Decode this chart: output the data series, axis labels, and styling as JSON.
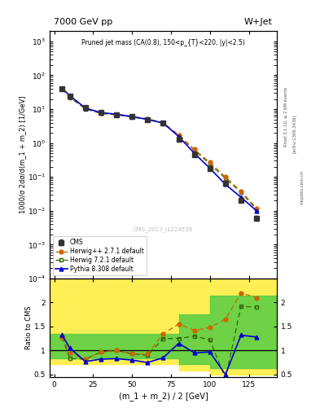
{
  "title_left": "7000 GeV pp",
  "title_right": "W+Jet",
  "plot_title": "Pruned jet mass (CA(0.8), 150<p_{T}<220, |y|<2.5)",
  "xlabel": "(m_1 + m_2) / 2 [GeV]",
  "ylabel_main": "1000/σ 2dσ/d(m_1 + m_2) [1/GeV]",
  "ylabel_ratio": "Ratio to CMS",
  "watermark": "CMS_2013_I1224539",
  "rivet_text": "Rivet 3.1.10, ≥ 2.6M events",
  "arxiv_text": "[arXiv:1306.3436]",
  "mcplots_text": "mcplots.cern.ch",
  "cms_x": [
    5,
    10,
    20,
    30,
    40,
    50,
    60,
    70,
    80,
    90,
    100,
    110,
    120,
    130
  ],
  "cms_y": [
    40,
    25,
    11,
    8,
    7,
    6,
    5,
    4,
    1.3,
    0.45,
    0.18,
    0.065,
    0.02,
    0.006
  ],
  "cms_yerr_lo": [
    3,
    2,
    0.8,
    0.6,
    0.5,
    0.4,
    0.4,
    0.3,
    0.1,
    0.04,
    0.015,
    0.005,
    0.002,
    0.001
  ],
  "cms_yerr_hi": [
    3,
    2,
    0.8,
    0.6,
    0.5,
    0.4,
    0.4,
    0.3,
    0.1,
    0.04,
    0.015,
    0.005,
    0.002,
    0.001
  ],
  "herwigpp_x": [
    5,
    10,
    20,
    30,
    40,
    50,
    60,
    70,
    80,
    90,
    100,
    110,
    120,
    130
  ],
  "herwigpp_y": [
    40,
    24,
    10.5,
    7.8,
    7.0,
    6.1,
    5.2,
    4.0,
    1.75,
    0.65,
    0.27,
    0.1,
    0.038,
    0.012
  ],
  "herwig_x": [
    5,
    10,
    20,
    30,
    40,
    50,
    60,
    70,
    80,
    90,
    100,
    110,
    120,
    130
  ],
  "herwig_y": [
    40,
    22,
    10.2,
    7.5,
    6.8,
    5.9,
    5.0,
    3.8,
    1.65,
    0.62,
    0.24,
    0.09,
    0.035,
    0.011
  ],
  "pythia_x": [
    5,
    10,
    20,
    30,
    40,
    50,
    60,
    70,
    80,
    90,
    100,
    110,
    120,
    130
  ],
  "pythia_y": [
    41,
    25,
    10.8,
    7.9,
    7.1,
    6.0,
    5.0,
    3.9,
    1.55,
    0.5,
    0.18,
    0.06,
    0.025,
    0.01
  ],
  "ratio_herwigpp": [
    1.28,
    0.95,
    0.82,
    0.97,
    1.0,
    0.93,
    0.93,
    1.35,
    1.55,
    1.42,
    1.48,
    1.65,
    2.2,
    2.1
  ],
  "ratio_herwig": [
    1.28,
    0.83,
    0.82,
    0.97,
    1.0,
    0.93,
    0.9,
    1.25,
    1.25,
    1.3,
    1.22,
    0.42,
    1.92,
    1.9
  ],
  "ratio_pythia": [
    1.32,
    1.05,
    0.77,
    0.82,
    0.83,
    0.8,
    0.75,
    0.85,
    1.15,
    0.95,
    0.97,
    0.5,
    1.32,
    1.28
  ],
  "cms_color": "#333333",
  "herwigpp_color": "#cc6600",
  "herwig_color": "#336600",
  "pythia_color": "#0000cc",
  "ylim_main": [
    0.0001,
    2000.0
  ],
  "ylim_ratio": [
    0.44,
    2.5
  ],
  "background_color": "#ffffff"
}
